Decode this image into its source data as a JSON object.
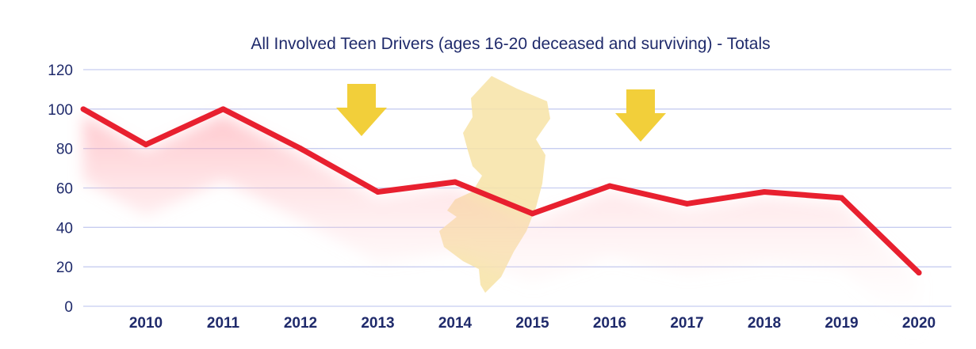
{
  "chart_data": {
    "type": "line",
    "title": "All Involved Teen Drivers (ages 16-20 deceased and surviving) - Totals",
    "xlabel": "",
    "ylabel": "",
    "categories": [
      "2010",
      "2011",
      "2012",
      "2013",
      "2014",
      "2015",
      "2016",
      "2017",
      "2018",
      "2019",
      "2020"
    ],
    "series": [
      {
        "values": [
          82,
          100,
          80,
          58,
          63,
          47,
          61,
          52,
          58,
          55,
          17
        ]
      }
    ],
    "start_value": 100,
    "ylim": [
      0,
      120
    ],
    "yticks": [
      0,
      20,
      40,
      60,
      80,
      100,
      120
    ],
    "grid": true,
    "legend": "none",
    "colors": {
      "line": "#e8202f",
      "glow": "#ff9aa4",
      "grid": "#c7cdf0",
      "text": "#1f2a6b",
      "arrow": "#f2cf3a",
      "state_map": "#f7e3a6"
    },
    "annotations": [
      {
        "type": "down-arrow-icon",
        "x": "2013"
      },
      {
        "type": "down-arrow-icon",
        "x": "2016"
      },
      {
        "type": "new-jersey-map-icon",
        "x": "2014"
      }
    ]
  }
}
